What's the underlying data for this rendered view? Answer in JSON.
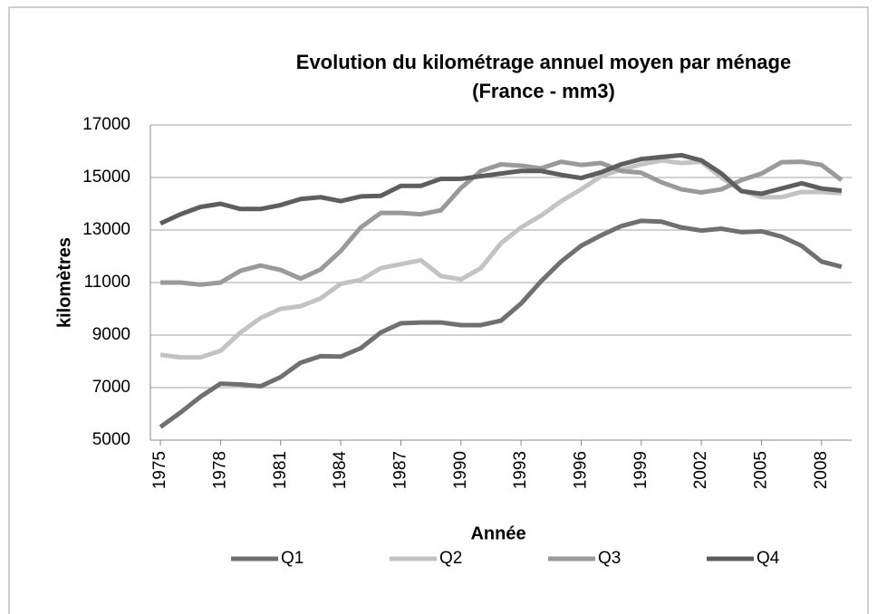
{
  "chart_data": {
    "type": "line",
    "title": [
      "Evolution du kilométrage annuel moyen par ménage",
      "(France - mm3)"
    ],
    "x_label": "Année",
    "y_label": "kilomètres",
    "x": [
      1975,
      1976,
      1977,
      1978,
      1979,
      1980,
      1981,
      1982,
      1983,
      1984,
      1985,
      1986,
      1987,
      1988,
      1989,
      1990,
      1991,
      1992,
      1993,
      1994,
      1995,
      1996,
      1997,
      1998,
      1999,
      2000,
      2001,
      2002,
      2003,
      2004,
      2005,
      2006,
      2007,
      2008,
      2009
    ],
    "xlim": [
      1974.5,
      2009.5
    ],
    "xticks": [
      1975,
      1978,
      1981,
      1984,
      1987,
      1990,
      1993,
      1996,
      1999,
      2002,
      2005,
      2008
    ],
    "ylim": [
      5000,
      17000
    ],
    "yticks": [
      5000,
      7000,
      9000,
      11000,
      13000,
      15000,
      17000
    ],
    "grid": true,
    "legend": "bottom",
    "series": [
      {
        "name": "Q1",
        "color": "#707070",
        "values": [
          5500,
          6050,
          6650,
          7150,
          7120,
          7050,
          7400,
          7950,
          8200,
          8180,
          8500,
          9100,
          9450,
          9480,
          9480,
          9380,
          9380,
          9550,
          10200,
          11050,
          11800,
          12400,
          12800,
          13150,
          13350,
          13320,
          13100,
          12980,
          13050,
          12920,
          12950,
          12750,
          12400,
          11800,
          11600
        ]
      },
      {
        "name": "Q2",
        "color": "#c3c3c3",
        "values": [
          8250,
          8150,
          8150,
          8400,
          9100,
          9650,
          10000,
          10100,
          10400,
          10950,
          11100,
          11550,
          11700,
          11850,
          11250,
          11120,
          11550,
          12500,
          13100,
          13550,
          14100,
          14550,
          15050,
          15300,
          15500,
          15650,
          15550,
          15600,
          15000,
          14500,
          14250,
          14250,
          14450,
          14450,
          14400
        ]
      },
      {
        "name": "Q3",
        "color": "#9a9a9a",
        "values": [
          11000,
          11000,
          10920,
          11000,
          11450,
          11650,
          11480,
          11150,
          11500,
          12200,
          13100,
          13650,
          13650,
          13600,
          13750,
          14600,
          15250,
          15500,
          15450,
          15350,
          15600,
          15480,
          15550,
          15250,
          15180,
          14820,
          14550,
          14430,
          14550,
          14900,
          15150,
          15580,
          15600,
          15480,
          14900
        ]
      },
      {
        "name": "Q4",
        "color": "#5e5e5e",
        "values": [
          13250,
          13600,
          13880,
          14000,
          13800,
          13800,
          13950,
          14180,
          14250,
          14100,
          14280,
          14300,
          14680,
          14680,
          14950,
          14950,
          15050,
          15150,
          15250,
          15250,
          15100,
          14980,
          15200,
          15500,
          15700,
          15780,
          15850,
          15650,
          15150,
          14480,
          14380,
          14580,
          14780,
          14580,
          14500
        ]
      }
    ]
  }
}
